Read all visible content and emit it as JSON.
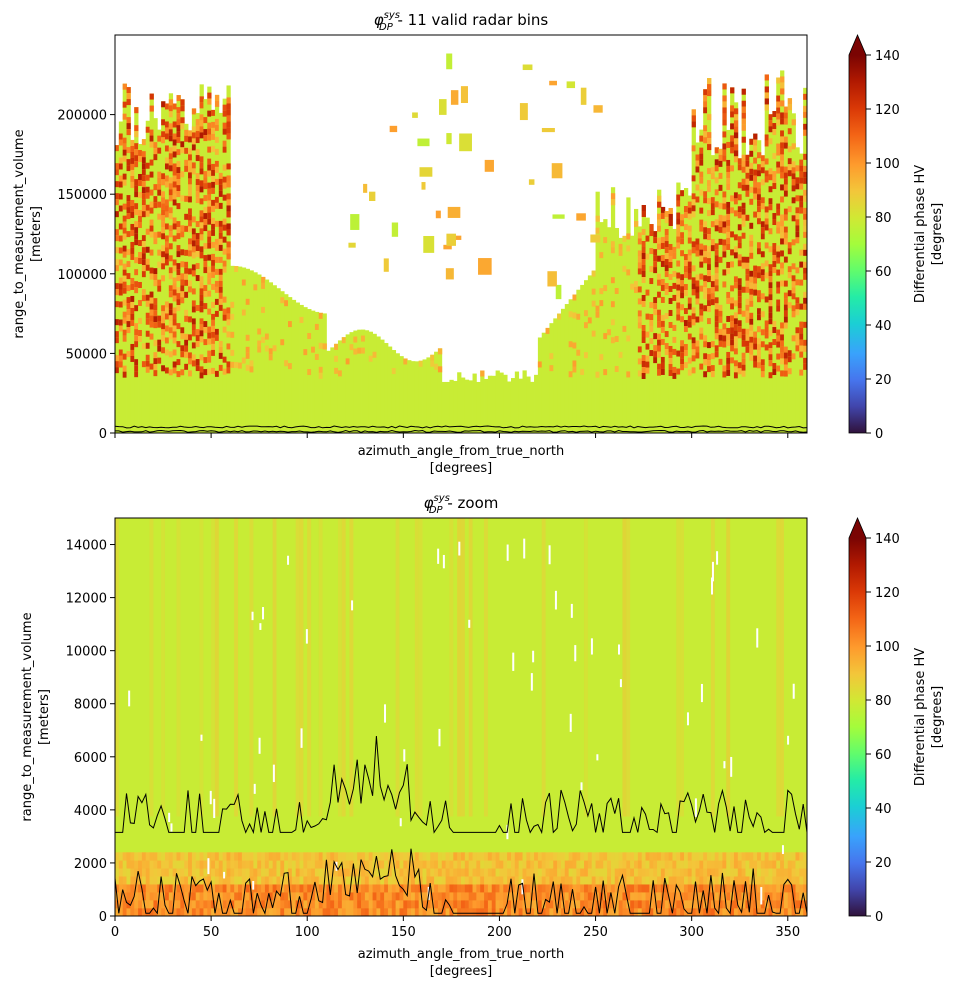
{
  "chart_data": [
    {
      "type": "heatmap",
      "title_symbol": "φ",
      "title_sup": "sys",
      "title_sub": "DP",
      "title_rest": " - 11 valid radar bins",
      "xlabel": "azimuth_angle_from_true_north",
      "xunit": "[degrees]",
      "ylabel": "range_to_measurement_volume",
      "yunit": "[meters]",
      "xlim": [
        0,
        360
      ],
      "ylim": [
        0,
        250000
      ],
      "x_ticks_labeled": false,
      "x_ticks": [
        0,
        50,
        100,
        150,
        200,
        250,
        300,
        350
      ],
      "y_ticks": [
        0,
        50000,
        100000,
        150000,
        200000
      ],
      "colorbar": {
        "label": "Differential phase HV",
        "unit": "[degrees]",
        "range": [
          0,
          140
        ],
        "ticks": [
          0,
          20,
          40,
          60,
          80,
          100,
          120,
          140
        ],
        "extend": "max",
        "colormap": "turbo"
      },
      "lines": [
        {
          "y_approx": 3800,
          "color": "#000000"
        },
        {
          "y_approx": 1000,
          "color": "#000000"
        }
      ]
    },
    {
      "type": "heatmap",
      "title_symbol": "φ",
      "title_sup": "sys",
      "title_sub": "DP",
      "title_rest": " - zoom",
      "xlabel": "azimuth_angle_from_true_north",
      "xunit": "[degrees]",
      "ylabel": "range_to_measurement_volume",
      "yunit": "[meters]",
      "xlim": [
        0,
        360
      ],
      "ylim": [
        0,
        15000
      ],
      "x_ticks": [
        0,
        50,
        100,
        150,
        200,
        250,
        300,
        350
      ],
      "y_ticks": [
        0,
        2000,
        4000,
        6000,
        8000,
        10000,
        12000,
        14000
      ],
      "colorbar": {
        "label": "Differential phase HV",
        "unit": "[degrees]",
        "range": [
          0,
          140
        ],
        "ticks": [
          0,
          20,
          40,
          60,
          80,
          100,
          120,
          140
        ],
        "extend": "max",
        "colormap": "turbo"
      },
      "lines": [
        {
          "name_hint": "upper",
          "y_range": [
            3100,
            6700
          ],
          "color": "#000000"
        },
        {
          "name_hint": "lower",
          "y_range": [
            0,
            3500
          ],
          "color": "#000000"
        }
      ]
    }
  ]
}
